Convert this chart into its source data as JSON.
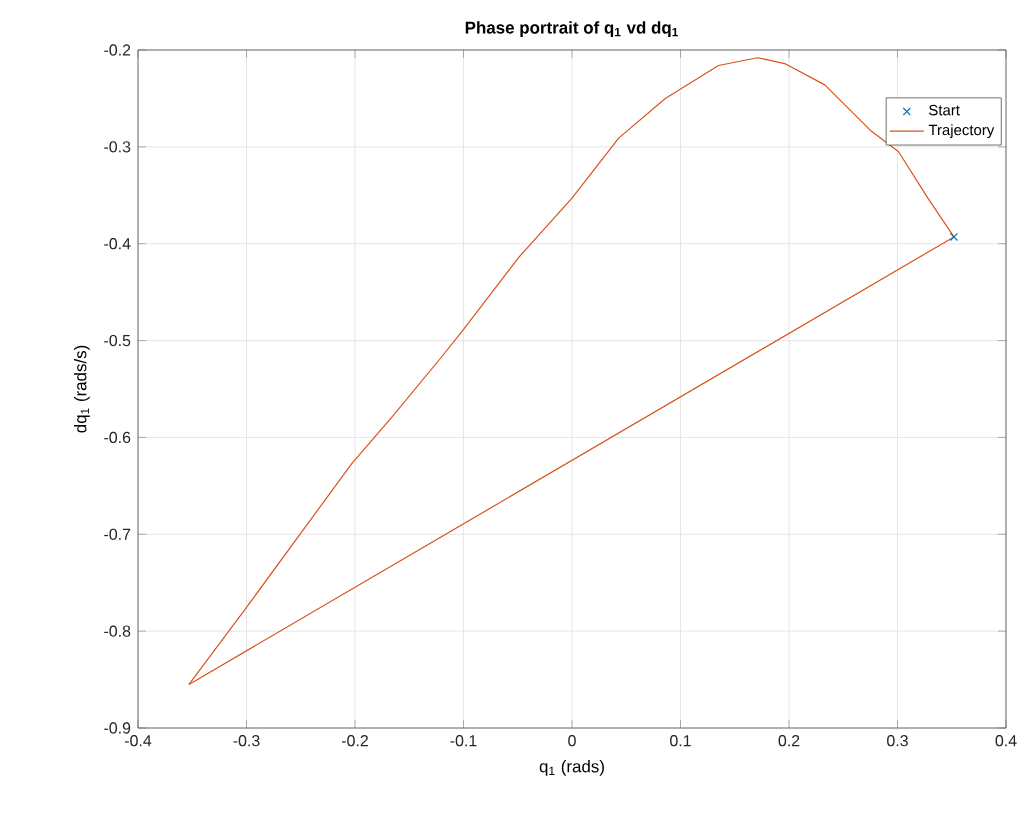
{
  "chart_data": {
    "type": "line",
    "title": "Phase portrait of q$_{1}$ vd dq$_{1}$",
    "xlabel": "q$_{1}$ (rads)",
    "ylabel": "dq$_{1}$ (rads/s)",
    "xlim": [
      -0.4,
      0.4
    ],
    "ylim": [
      -0.9,
      -0.2
    ],
    "xticks": [
      -0.4,
      -0.3,
      -0.2,
      -0.1,
      0,
      0.1,
      0.2,
      0.3,
      0.4
    ],
    "yticks": [
      -0.9,
      -0.8,
      -0.7,
      -0.6,
      -0.5,
      -0.4,
      -0.3,
      -0.2
    ],
    "grid": true,
    "legend": "top right",
    "series": [
      {
        "name": "Start",
        "type": "scatter",
        "marker": "cross",
        "color": "#0072bd",
        "x": [
          0.352
        ],
        "values": [
          -0.393
        ]
      },
      {
        "name": "Trajectory",
        "type": "line",
        "marker": "none",
        "line_style": "solid",
        "color": "#d95319",
        "x": [
          0.352,
          0.328,
          0.301,
          0.276,
          0.233,
          0.196,
          0.171,
          0.135,
          0.086,
          0.043,
          0.0,
          -0.049,
          -0.101,
          -0.121,
          -0.166,
          -0.203,
          -0.301,
          -0.353
        ],
        "values": [
          -0.393,
          -0.353,
          -0.305,
          -0.284,
          -0.236,
          -0.214,
          -0.208,
          -0.216,
          -0.25,
          -0.291,
          -0.353,
          -0.414,
          -0.49,
          -0.518,
          -0.579,
          -0.627,
          -0.777,
          -0.855
        ]
      },
      {
        "type": "line",
        "marker": "none",
        "line_style": "solid",
        "color": "#d95319",
        "x": [
          -0.353,
          0.352
        ],
        "values": [
          -0.855,
          -0.393
        ]
      }
    ]
  }
}
